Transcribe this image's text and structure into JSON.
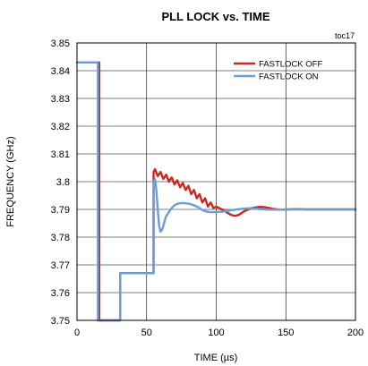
{
  "chart_data": {
    "type": "line",
    "title": "PLL LOCK vs. TIME",
    "note": "toc17",
    "xlabel": "TIME (µs)",
    "ylabel": "FREQUENCY  (GHz)",
    "xlim": [
      0,
      200
    ],
    "ylim": [
      3.75,
      3.85
    ],
    "xticks": [
      0,
      50,
      100,
      150,
      200
    ],
    "yticks": [
      3.75,
      3.76,
      3.77,
      3.78,
      3.79,
      3.8,
      3.81,
      3.82,
      3.83,
      3.84,
      3.85
    ],
    "ytick_labels": [
      "3.75",
      "3.76",
      "3.77",
      "3.78",
      "3.79",
      "3.8",
      "3.81",
      "3.82",
      "3.83",
      "3.84",
      "3.85"
    ],
    "grid": true,
    "legend_position": "top-right",
    "series": [
      {
        "name": "FASTLOCK OFF",
        "color": "#c8281e",
        "x": [
          0,
          16,
          16,
          31,
          31,
          55,
          55,
          56,
          58,
          60,
          62,
          64,
          66,
          68,
          70,
          72,
          74,
          76,
          78,
          80,
          82,
          84,
          86,
          88,
          90,
          92,
          94,
          96,
          98,
          100,
          102,
          104,
          106,
          108,
          110,
          112,
          114,
          116,
          118,
          120,
          123,
          126,
          129,
          132,
          135,
          138,
          141,
          144,
          148,
          152,
          156,
          160,
          165,
          170,
          175,
          180,
          190,
          200
        ],
        "y": [
          3.843,
          3.843,
          3.75,
          3.75,
          3.767,
          3.767,
          3.8035,
          3.8045,
          3.802,
          3.8035,
          3.801,
          3.8025,
          3.8,
          3.8015,
          3.799,
          3.8005,
          3.798,
          3.7995,
          3.797,
          3.7985,
          3.7955,
          3.797,
          3.794,
          3.7955,
          3.7925,
          3.794,
          3.791,
          3.7925,
          3.7905,
          3.791,
          3.7905,
          3.79,
          3.7895,
          3.7888,
          3.7882,
          3.7878,
          3.7877,
          3.788,
          3.7886,
          3.7893,
          3.79,
          3.7905,
          3.7908,
          3.7909,
          3.7908,
          3.7905,
          3.7902,
          3.79,
          3.7899,
          3.79,
          3.7901,
          3.7901,
          3.79,
          3.79,
          3.79,
          3.79,
          3.79,
          3.79
        ]
      },
      {
        "name": "FASTLOCK ON",
        "color": "#6a9fd4",
        "x": [
          0,
          15,
          15,
          31,
          31,
          55,
          55,
          56,
          57,
          58,
          59,
          60,
          61,
          62,
          63,
          64,
          66,
          68,
          70,
          72,
          75,
          78,
          81,
          84,
          87,
          90,
          93,
          96,
          100,
          105,
          110,
          115,
          120,
          125,
          130,
          135,
          140,
          145,
          150,
          160,
          170,
          180,
          190,
          200
        ],
        "y": [
          3.843,
          3.843,
          3.75,
          3.75,
          3.767,
          3.767,
          3.8,
          3.801,
          3.797,
          3.79,
          3.784,
          3.782,
          3.7825,
          3.784,
          3.786,
          3.7875,
          3.789,
          3.7905,
          3.7915,
          3.792,
          3.7923,
          3.7922,
          3.792,
          3.7915,
          3.7908,
          3.7898,
          3.7892,
          3.789,
          3.789,
          3.7892,
          3.7896,
          3.79,
          3.7903,
          3.7904,
          3.7902,
          3.79,
          3.7899,
          3.7899,
          3.79,
          3.79,
          3.79,
          3.79,
          3.79,
          3.79
        ]
      }
    ]
  }
}
